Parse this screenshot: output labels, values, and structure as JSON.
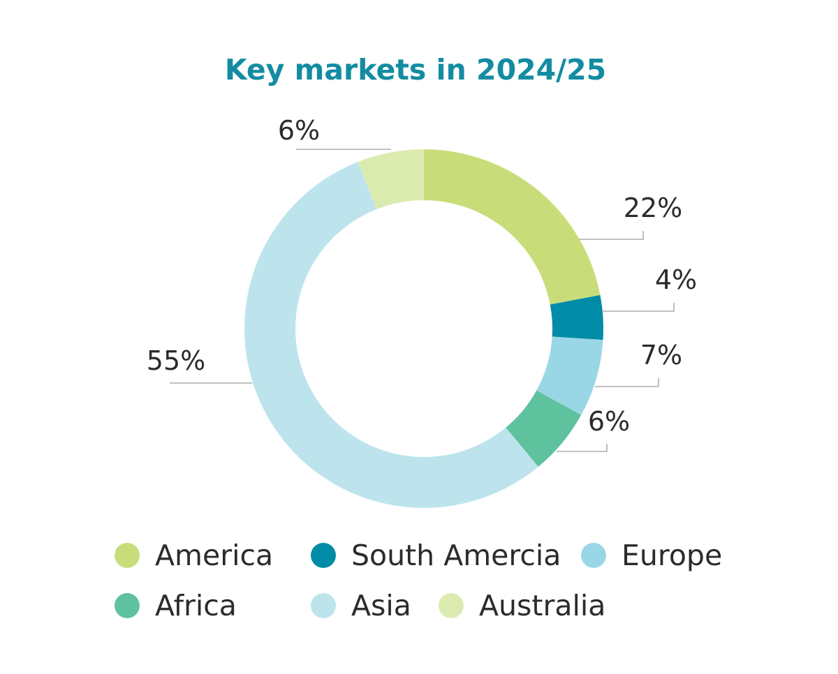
{
  "chart_data": {
    "type": "pie",
    "title": "Key markets in 2024/25",
    "slices": [
      {
        "label": "America",
        "value": 22,
        "text": "22%",
        "color": "#c8dd79"
      },
      {
        "label": "South Amercia",
        "value": 4,
        "text": "4%",
        "color": "#008ca6"
      },
      {
        "label": "Europe",
        "value": 7,
        "text": "7%",
        "color": "#99d7e6"
      },
      {
        "label": "Africa",
        "value": 6,
        "text": "6%",
        "color": "#5fc29e"
      },
      {
        "label": "Asia",
        "value": 55,
        "text": "55%",
        "color": "#bde4ec"
      },
      {
        "label": "Australia",
        "value": 6,
        "text": "6%",
        "color": "#dbebb0"
      }
    ],
    "legend_position": "bottom"
  }
}
